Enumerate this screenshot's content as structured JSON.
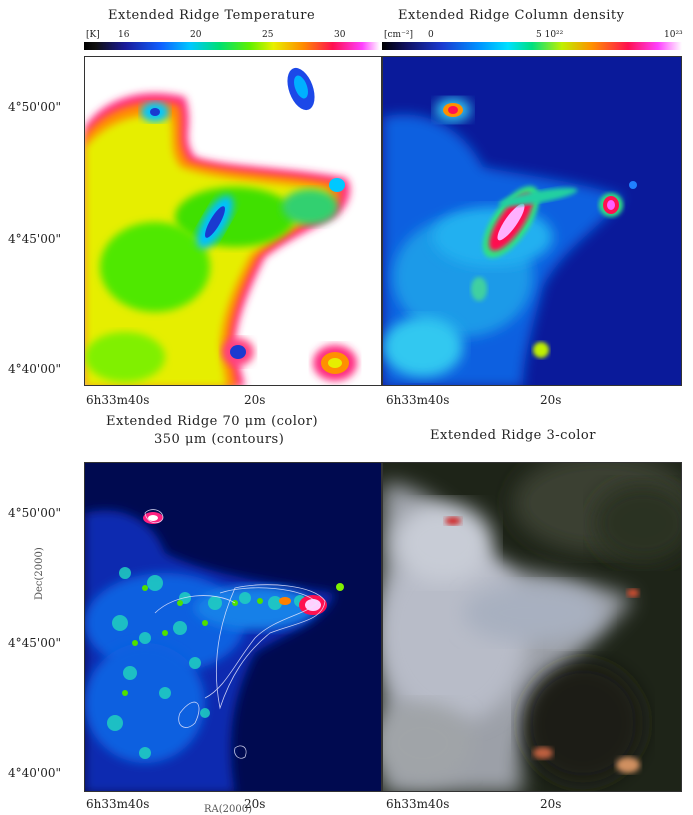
{
  "titles": {
    "temperature": "Extended Ridge Temperature",
    "column_density": "Extended Ridge Column density",
    "seventy_line1": "Extended Ridge 70 μm (color)",
    "seventy_line2": "350 μm (contours)",
    "three_color": "Extended Ridge 3-color"
  },
  "colorbars": {
    "temperature": {
      "unit": "[K]",
      "ticks": [
        "16",
        "20",
        "25",
        "30"
      ]
    },
    "column_density": {
      "unit": "[cm⁻²]",
      "ticks": [
        "0",
        "5 10²²",
        "10²³"
      ]
    }
  },
  "axes": {
    "top_yticks": [
      "4°50'00\"",
      "4°45'00\"",
      "4°40'00\""
    ],
    "bottom_yticks": [
      "4°50'00\"",
      "4°45'00\"",
      "4°40'00\""
    ],
    "xticks_left": [
      "6h33m40s",
      "20s"
    ],
    "xticks_right": [
      "6h33m40s",
      "20s"
    ],
    "ylabel": "Dec(2000)",
    "xlabel": "RA(2000)"
  },
  "colors": {
    "background": "#ffffff",
    "temp_low": "#1010c0",
    "temp_mid": "#00d000",
    "temp_high": "#ff1060",
    "coldens_bg": "#0a1a9a",
    "seventy_bg": "#000a50"
  }
}
